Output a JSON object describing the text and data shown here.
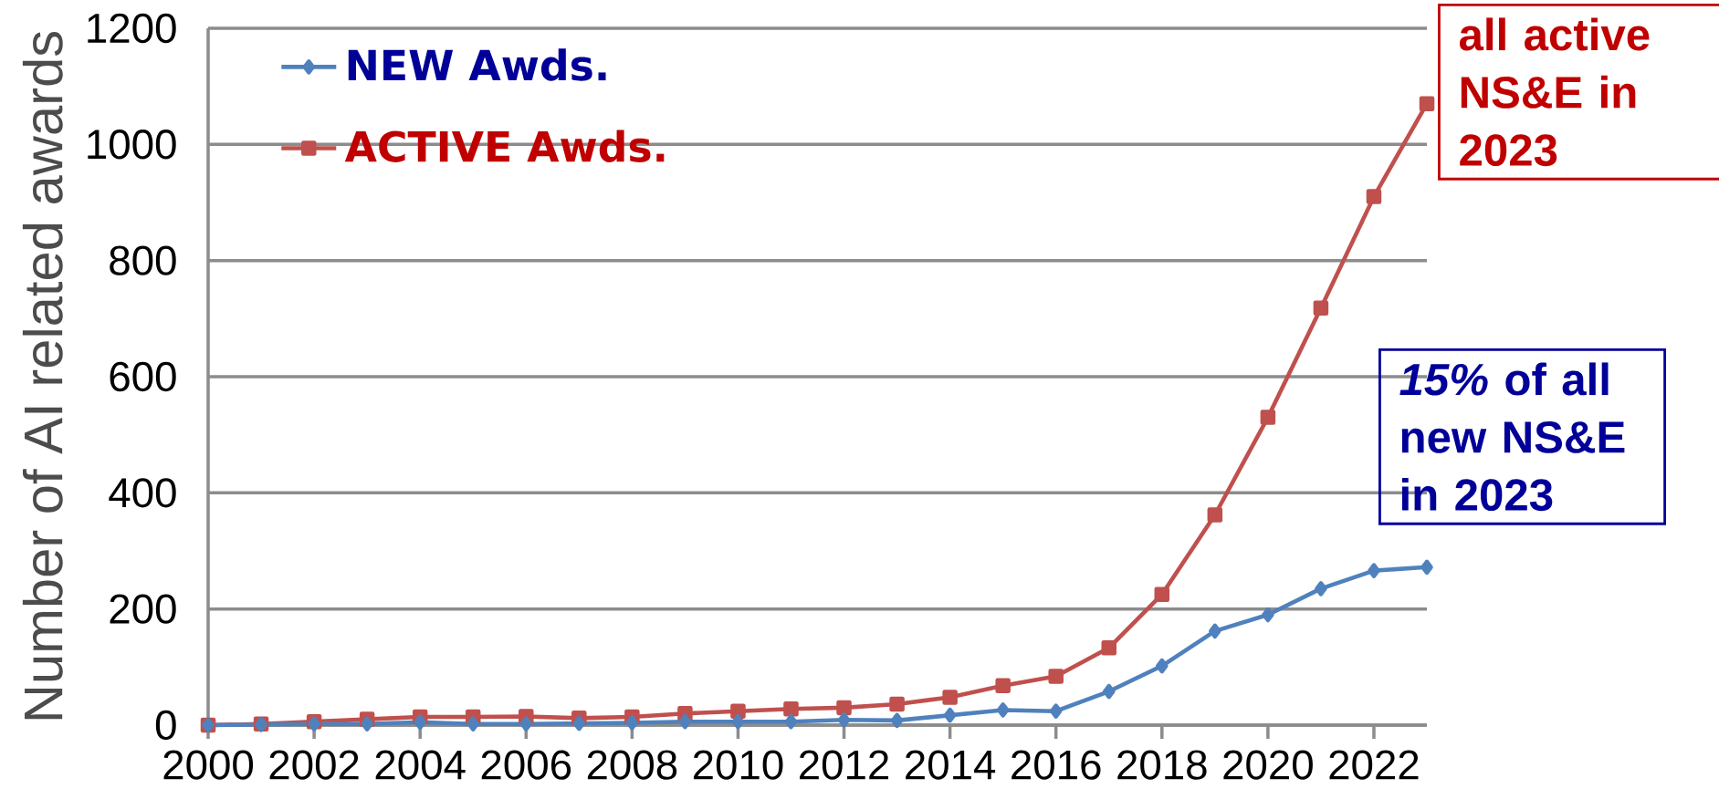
{
  "chart_data": {
    "type": "line",
    "ylabel": "Number of  AI  related  awards",
    "x": [
      2000,
      2001,
      2002,
      2003,
      2004,
      2005,
      2006,
      2007,
      2008,
      2009,
      2010,
      2011,
      2012,
      2013,
      2014,
      2015,
      2016,
      2017,
      2018,
      2019,
      2020,
      2021,
      2022,
      2023
    ],
    "series": [
      {
        "name": "NEW Awds.",
        "color": "#4f81bd",
        "marker": "diamond",
        "values": [
          0,
          1,
          2,
          2,
          5,
          2,
          2,
          3,
          4,
          6,
          6,
          6,
          9,
          8,
          17,
          26,
          24,
          58,
          102,
          162,
          190,
          235,
          266,
          272
        ]
      },
      {
        "name": "ACTIVE Awds.",
        "color": "#c0504d",
        "marker": "square",
        "values": [
          0,
          2,
          6,
          10,
          14,
          14,
          15,
          12,
          14,
          20,
          24,
          28,
          30,
          36,
          48,
          68,
          84,
          133,
          225,
          362,
          530,
          718,
          910,
          1070
        ]
      }
    ],
    "xlim": [
      2000,
      2023
    ],
    "xticks": [
      2000,
      2002,
      2004,
      2006,
      2008,
      2010,
      2012,
      2014,
      2016,
      2018,
      2020,
      2022
    ],
    "ylim": [
      0,
      1200
    ],
    "yticks": [
      0,
      200,
      400,
      600,
      800,
      1000,
      1200
    ],
    "grid": "y",
    "legend": "top left",
    "annotations": [
      "all active NS&E in 2023",
      "*15%* of all new NS&E in 2023"
    ]
  }
}
